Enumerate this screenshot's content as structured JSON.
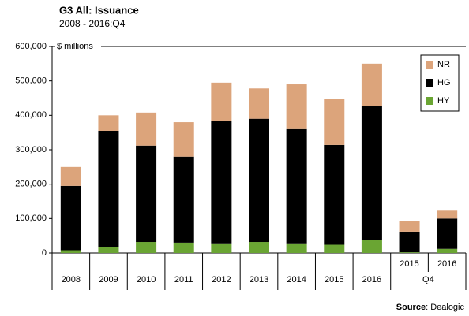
{
  "chart_data": {
    "type": "stacked_bar",
    "title": "G3 All: Issuance",
    "subtitle": "2008 - 2016:Q4",
    "y_axis_unit": "$ millions",
    "source_prefix": "Source",
    "source": ": Dealogic",
    "categories": [
      "2008",
      "2009",
      "2010",
      "2011",
      "2012",
      "2013",
      "2014",
      "2015",
      "2016",
      "2015",
      "2016"
    ],
    "category_groups": [
      null,
      null,
      null,
      null,
      null,
      null,
      null,
      null,
      null,
      "Q4",
      "Q4"
    ],
    "series": [
      {
        "name": "HY",
        "color": "#6aa533",
        "values": [
          8000,
          18000,
          32000,
          30000,
          28000,
          32000,
          28000,
          24000,
          37000,
          2000,
          12000
        ]
      },
      {
        "name": "HG",
        "color": "#000000",
        "values": [
          187000,
          337000,
          280000,
          250000,
          355000,
          358000,
          332000,
          290000,
          391000,
          60000,
          88000
        ]
      },
      {
        "name": "NR",
        "color": "#dca47b",
        "values": [
          55000,
          45000,
          96000,
          100000,
          112000,
          88000,
          130000,
          134000,
          122000,
          31000,
          23000
        ]
      }
    ],
    "ylim": [
      0,
      600000
    ],
    "yticks": [
      0,
      {
        "value": 100000,
        "label": "100,000"
      },
      {
        "value": 200000,
        "label": "200,000"
      },
      {
        "value": 300000,
        "label": "300,000"
      },
      {
        "value": 400000,
        "label": "400,000"
      },
      {
        "value": 500000,
        "label": "500,000"
      },
      {
        "value": 600000,
        "label": "600,000"
      }
    ],
    "legend": "top-right"
  }
}
